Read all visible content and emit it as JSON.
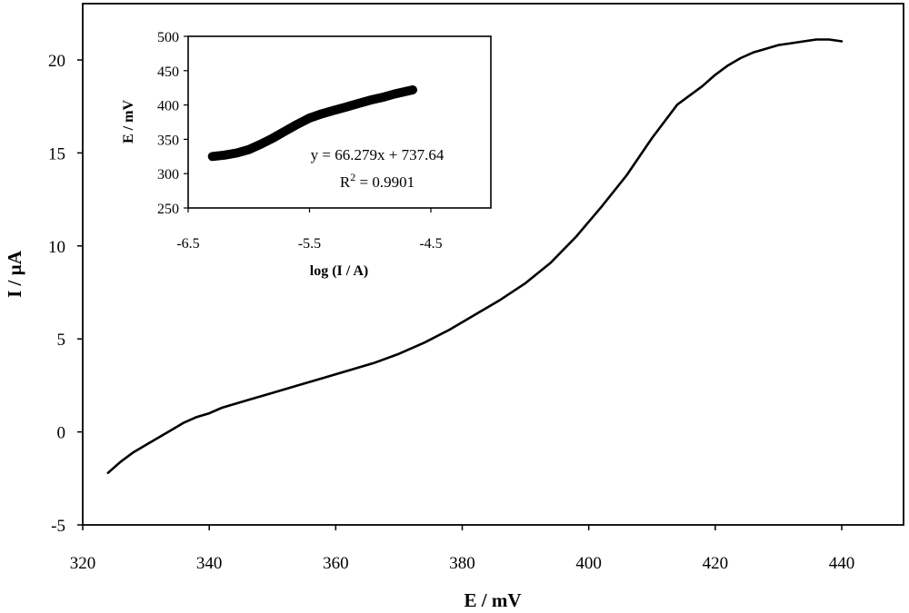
{
  "chart_data": [
    {
      "type": "line",
      "xlabel": "E / mV",
      "ylabel": "I / µA",
      "xlim": [
        320,
        450
      ],
      "ylim": [
        -5,
        22
      ],
      "xticks": [
        320,
        340,
        360,
        380,
        400,
        420,
        440
      ],
      "yticks": [
        -5,
        0,
        5,
        10,
        15,
        20
      ],
      "grid": false,
      "series": [
        {
          "x": [
            324,
            326,
            328,
            330,
            332,
            334,
            336,
            338,
            340,
            342,
            344,
            346,
            350,
            354,
            358,
            362,
            366,
            370,
            374,
            378,
            382,
            386,
            390,
            394,
            398,
            402,
            406,
            410,
            414,
            418,
            420,
            422,
            424,
            426,
            428,
            430,
            432,
            434,
            436,
            438,
            440
          ],
          "y": [
            -2.2,
            -1.6,
            -1.1,
            -0.7,
            -0.3,
            0.1,
            0.5,
            0.8,
            1.0,
            1.3,
            1.5,
            1.7,
            2.1,
            2.5,
            2.9,
            3.3,
            3.7,
            4.2,
            4.8,
            5.5,
            6.3,
            7.1,
            8.0,
            9.1,
            10.5,
            12.1,
            13.8,
            15.8,
            17.6,
            18.6,
            19.2,
            19.7,
            20.1,
            20.4,
            20.6,
            20.8,
            20.9,
            21.0,
            21.1,
            21.1,
            21.0
          ]
        }
      ]
    },
    {
      "type": "scatter",
      "xlabel": "log (I / A)",
      "ylabel": "E / mV",
      "xlim": [
        -6.5,
        -4.0
      ],
      "ylim": [
        250,
        500
      ],
      "xticks": [
        -6.5,
        -5.5,
        -4.5
      ],
      "yticks": [
        250,
        300,
        350,
        400,
        450,
        500
      ],
      "grid": false,
      "annotation": {
        "equation": "y = 66.279x + 737.64",
        "r2_prefix": "R",
        "r2_sup": "2",
        "r2_suffix": " = 0.9901"
      },
      "series": [
        {
          "x": [
            -6.3,
            -6.2,
            -6.1,
            -6.0,
            -5.9,
            -5.8,
            -5.7,
            -5.6,
            -5.5,
            -5.4,
            -5.3,
            -5.2,
            -5.1,
            -5.0,
            -4.9,
            -4.8,
            -4.7,
            -4.65
          ],
          "y": [
            325,
            327,
            330,
            335,
            343,
            352,
            362,
            372,
            381,
            387,
            392,
            397,
            402,
            407,
            411,
            416,
            420,
            422
          ]
        }
      ]
    }
  ]
}
